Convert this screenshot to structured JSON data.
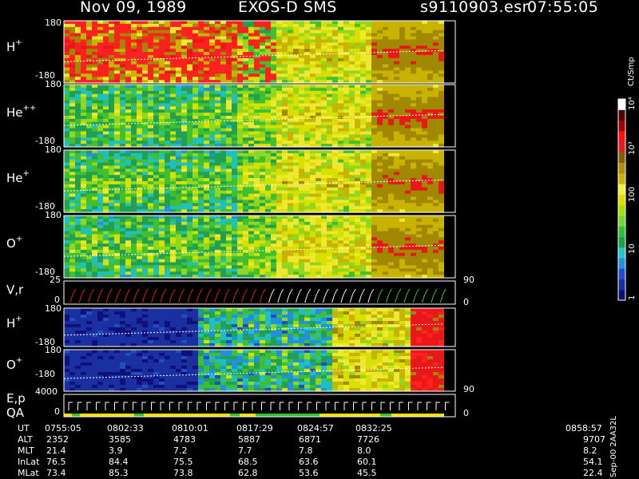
{
  "header": {
    "date": "Nov 09, 1989",
    "mission": "EXOS-D SMS",
    "file": "s9110903.esr",
    "time": "07:55:05"
  },
  "chart_data": {
    "type": "heatmap",
    "panels": [
      {
        "id": "h1",
        "sup": "+",
        "species": "H",
        "ytop": "180",
        "ybottom": "-180",
        "kind": "spectro"
      },
      {
        "id": "he2",
        "sup": "++",
        "species": "He",
        "ytop": "180",
        "ybottom": "-180",
        "kind": "spectro"
      },
      {
        "id": "he1",
        "sup": "+",
        "species": "He",
        "ytop": "180",
        "ybottom": "-180",
        "kind": "spectro"
      },
      {
        "id": "o1",
        "sup": "+",
        "species": "O",
        "ytop": "180",
        "ybottom": "-180",
        "kind": "spectro"
      },
      {
        "id": "vr",
        "label": "V,r",
        "ytop": "25",
        "ybottom": "0",
        "ryTop": "90",
        "ryBottom": "0",
        "kind": "line"
      },
      {
        "id": "h2",
        "sup": "+",
        "species": "H",
        "ytop": "180",
        "ybottom": "-180",
        "kind": "spectro2"
      },
      {
        "id": "o2",
        "sup": "+",
        "species": "O",
        "ytop": "180",
        "ybottom": "-180",
        "ryBottom": "90",
        "kind": "spectro2"
      },
      {
        "id": "ep",
        "label": "E,p",
        "label2": "QA",
        "ytop": "4000",
        "ybottom": "0",
        "ryBottom": "0",
        "kind": "line2"
      }
    ],
    "colorbar": {
      "title": "Ct/Smp",
      "ticks": [
        "1",
        "10",
        "100",
        "10³",
        "10⁴"
      ],
      "colors": [
        "#10107a",
        "#1a2fa0",
        "#1f4fd0",
        "#2090e0",
        "#20c8c8",
        "#1aa050",
        "#30c030",
        "#70d830",
        "#a8e000",
        "#e0e000",
        "#f0f040",
        "#c8b400",
        "#b09000",
        "#806000",
        "#e02020",
        "#ff1010",
        "#a00000",
        "#500000",
        "#ffffff"
      ]
    },
    "x_axis": {
      "rows": [
        {
          "name": "UT",
          "values": [
            "0755:05",
            "0802:33",
            "0810:01",
            "0817:29",
            "0824:57",
            "0832:25",
            "0858:57"
          ]
        },
        {
          "name": "ALT",
          "values": [
            "2352",
            "3585",
            "4783",
            "5887",
            "6871",
            "7726",
            "9707"
          ]
        },
        {
          "name": "MLT",
          "values": [
            "21.4",
            "3.9",
            "7.2",
            "7.7",
            "7.8",
            "8.0",
            "8.2"
          ]
        },
        {
          "name": "InLat",
          "values": [
            "76.5",
            "84.4",
            "75.5",
            "68.5",
            "63.6",
            "60.1",
            "54.1"
          ]
        },
        {
          "name": "MLat",
          "values": [
            "73.4",
            "85.3",
            "73.8",
            "62.8",
            "53.6",
            "45.5",
            "22.4"
          ]
        }
      ]
    },
    "footer_note": "Sep-00 2AA32L"
  }
}
